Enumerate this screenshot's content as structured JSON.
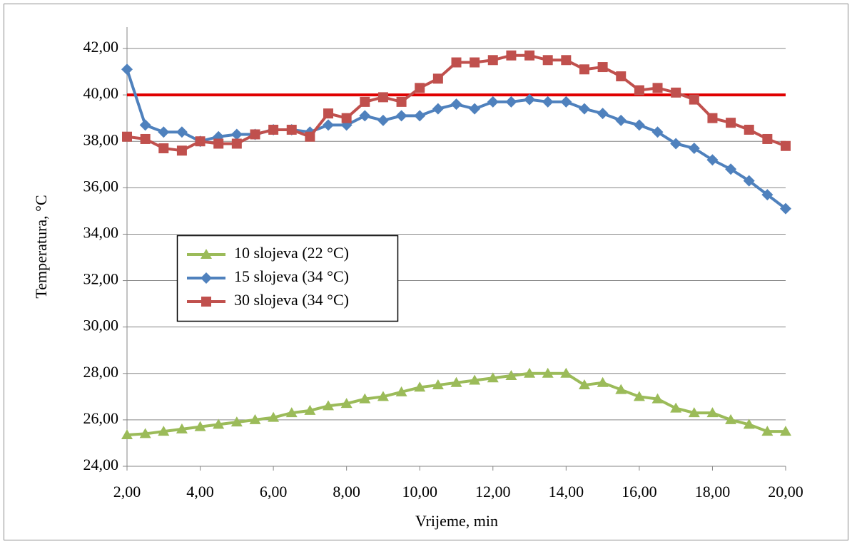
{
  "chart_data": {
    "type": "line",
    "x_label": "Vrijeme, min",
    "y_label": "Temperatura, °C",
    "x": [
      2,
      2.5,
      3,
      3.5,
      4,
      4.5,
      5,
      5.5,
      6,
      6.5,
      7,
      7.5,
      8,
      8.5,
      9,
      9.5,
      10,
      10.5,
      11,
      11.5,
      12,
      12.5,
      13,
      13.5,
      14,
      14.5,
      15,
      15.5,
      16,
      16.5,
      17,
      17.5,
      18,
      18.5,
      19,
      19.5,
      20
    ],
    "series": [
      {
        "name": "10 slojeva (22 °C)",
        "color": "#9bbb59",
        "marker": "triangle",
        "values": [
          25.35,
          25.4,
          25.5,
          25.6,
          25.7,
          25.8,
          25.9,
          26.0,
          26.1,
          26.3,
          26.4,
          26.6,
          26.7,
          26.9,
          27.0,
          27.2,
          27.4,
          27.5,
          27.6,
          27.7,
          27.8,
          27.9,
          28.0,
          28.0,
          28.0,
          27.5,
          27.6,
          27.3,
          27.0,
          26.9,
          26.5,
          26.3,
          26.3,
          26.0,
          25.8,
          25.5,
          25.5
        ]
      },
      {
        "name": "15 slojeva (34 °C)",
        "color": "#4f81bd",
        "marker": "diamond",
        "values": [
          41.1,
          38.7,
          38.4,
          38.4,
          38.0,
          38.2,
          38.3,
          38.3,
          38.5,
          38.5,
          38.4,
          38.7,
          38.7,
          39.1,
          38.9,
          39.1,
          39.1,
          39.4,
          39.6,
          39.4,
          39.7,
          39.7,
          39.8,
          39.7,
          39.7,
          39.4,
          39.2,
          38.9,
          38.7,
          38.4,
          37.9,
          37.7,
          37.2,
          36.8,
          36.3,
          35.7,
          35.1
        ]
      },
      {
        "name": "30 slojeva (34 °C)",
        "color": "#c0504d",
        "marker": "square",
        "values": [
          38.2,
          38.1,
          37.7,
          37.6,
          38.0,
          37.9,
          37.9,
          38.3,
          38.5,
          38.5,
          38.2,
          39.2,
          39.0,
          39.7,
          39.9,
          39.7,
          40.3,
          40.7,
          41.4,
          41.4,
          41.5,
          41.7,
          41.7,
          41.5,
          41.5,
          41.1,
          41.2,
          40.8,
          40.2,
          40.3,
          40.1,
          39.8,
          39.0,
          38.8,
          38.5,
          38.1,
          37.8
        ]
      }
    ],
    "reference_line": {
      "value": 40,
      "color": "#e00000"
    },
    "xlim": [
      2,
      20
    ],
    "xticks": [
      {
        "value": 2,
        "label": "2,00"
      },
      {
        "value": 4,
        "label": "4,00"
      },
      {
        "value": 6,
        "label": "6,00"
      },
      {
        "value": 8,
        "label": "8,00"
      },
      {
        "value": 10,
        "label": "10,00"
      },
      {
        "value": 12,
        "label": "12,00"
      },
      {
        "value": 14,
        "label": "14,00"
      },
      {
        "value": 16,
        "label": "16,00"
      },
      {
        "value": 18,
        "label": "18,00"
      },
      {
        "value": 20,
        "label": "20,00"
      }
    ],
    "ylim": [
      24,
      42
    ],
    "yticks": [
      {
        "value": 24,
        "label": "24,00"
      },
      {
        "value": 26,
        "label": "26,00"
      },
      {
        "value": 28,
        "label": "28,00"
      },
      {
        "value": 30,
        "label": "30,00"
      },
      {
        "value": 32,
        "label": "32,00"
      },
      {
        "value": 34,
        "label": "34,00"
      },
      {
        "value": 36,
        "label": "36,00"
      },
      {
        "value": 38,
        "label": "38,00"
      },
      {
        "value": 40,
        "label": "40,00"
      },
      {
        "value": 42,
        "label": "42,00"
      }
    ],
    "grid": true,
    "legend": "center-left"
  }
}
